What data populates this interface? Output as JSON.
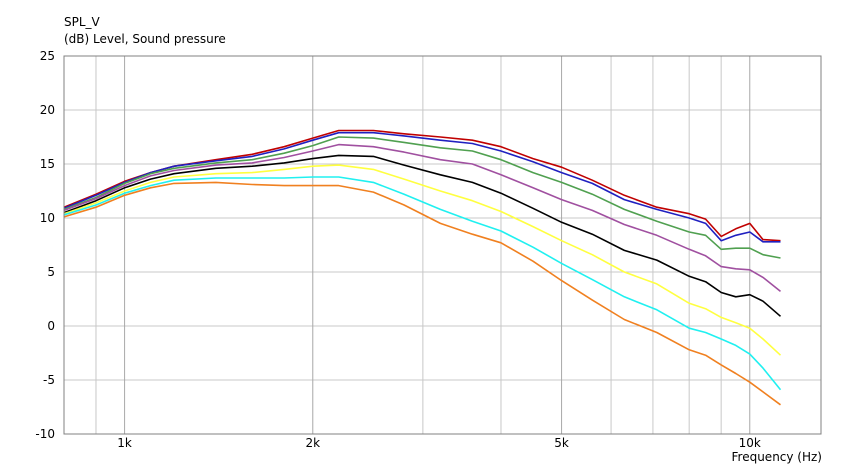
{
  "chart_data": {
    "type": "line",
    "title": "SPL_V",
    "ylabel": "(dB)  Level, Sound pressure",
    "xlabel": "Frequency  (Hz)",
    "x_scale": "log",
    "xlim": [
      800,
      13000
    ],
    "ylim": [
      -10,
      25
    ],
    "grid": true,
    "y_ticks": [
      -10,
      -5,
      0,
      5,
      10,
      15,
      20,
      25
    ],
    "x_ticks": [
      {
        "value": 1000,
        "label": "1k"
      },
      {
        "value": 2000,
        "label": "2k"
      },
      {
        "value": 5000,
        "label": "5k"
      },
      {
        "value": 10000,
        "label": "10k"
      }
    ],
    "x_minor_grid": [
      900,
      3000,
      4000,
      6000,
      7000,
      8000,
      9000
    ],
    "x": [
      800,
      900,
      1000,
      1100,
      1200,
      1400,
      1600,
      1800,
      2000,
      2200,
      2500,
      2800,
      3200,
      3600,
      4000,
      4500,
      5000,
      5600,
      6300,
      7100,
      8000,
      8500,
      9000,
      9500,
      10000,
      10500,
      11200
    ],
    "series": [
      {
        "color": "#c00000",
        "values": [
          11.0,
          12.2,
          13.4,
          14.2,
          14.8,
          15.4,
          15.9,
          16.6,
          17.4,
          18.1,
          18.1,
          17.8,
          17.5,
          17.2,
          16.6,
          15.5,
          14.7,
          13.5,
          12.1,
          11.0,
          10.4,
          9.9,
          8.3,
          9.0,
          9.5,
          8.0,
          7.9
        ]
      },
      {
        "color": "#2020c0",
        "values": [
          10.9,
          12.1,
          13.3,
          14.2,
          14.8,
          15.3,
          15.7,
          16.4,
          17.2,
          17.9,
          17.9,
          17.6,
          17.2,
          16.9,
          16.2,
          15.2,
          14.2,
          13.2,
          11.7,
          10.8,
          10.0,
          9.5,
          7.9,
          8.4,
          8.7,
          7.8,
          7.8
        ]
      },
      {
        "color": "#50a050",
        "values": [
          10.8,
          11.9,
          13.2,
          14.1,
          14.6,
          15.1,
          15.4,
          16.0,
          16.7,
          17.5,
          17.4,
          17.0,
          16.5,
          16.2,
          15.4,
          14.2,
          13.3,
          12.2,
          10.8,
          9.7,
          8.7,
          8.4,
          7.1,
          7.2,
          7.2,
          6.6,
          6.3
        ]
      },
      {
        "color": "#a050a0",
        "values": [
          10.7,
          11.8,
          13.0,
          13.9,
          14.4,
          14.9,
          15.1,
          15.6,
          16.2,
          16.8,
          16.6,
          16.1,
          15.4,
          15.0,
          14.0,
          12.8,
          11.7,
          10.7,
          9.4,
          8.4,
          7.1,
          6.5,
          5.5,
          5.3,
          5.2,
          4.5,
          3.2
        ]
      },
      {
        "color": "#000000",
        "values": [
          10.5,
          11.6,
          12.8,
          13.6,
          14.1,
          14.6,
          14.8,
          15.1,
          15.5,
          15.8,
          15.7,
          14.9,
          14.0,
          13.3,
          12.3,
          10.9,
          9.6,
          8.5,
          7.0,
          6.1,
          4.6,
          4.1,
          3.1,
          2.7,
          2.9,
          2.3,
          0.9
        ]
      },
      {
        "color": "#ffff40",
        "values": [
          10.4,
          11.4,
          12.5,
          13.3,
          13.8,
          14.1,
          14.2,
          14.5,
          14.8,
          14.9,
          14.5,
          13.6,
          12.5,
          11.6,
          10.6,
          9.2,
          7.9,
          6.6,
          5.0,
          3.9,
          2.1,
          1.6,
          0.8,
          0.3,
          -0.2,
          -1.2,
          -2.7
        ]
      },
      {
        "color": "#20f0f0",
        "values": [
          10.3,
          11.2,
          12.3,
          13.0,
          13.5,
          13.7,
          13.7,
          13.7,
          13.8,
          13.8,
          13.3,
          12.2,
          10.8,
          9.7,
          8.8,
          7.3,
          5.8,
          4.3,
          2.7,
          1.5,
          -0.2,
          -0.6,
          -1.2,
          -1.8,
          -2.6,
          -3.9,
          -5.9
        ]
      },
      {
        "color": "#f08020",
        "values": [
          10.1,
          11.0,
          12.1,
          12.8,
          13.2,
          13.3,
          13.1,
          13.0,
          13.0,
          13.0,
          12.4,
          11.2,
          9.5,
          8.5,
          7.7,
          6.0,
          4.2,
          2.4,
          0.6,
          -0.6,
          -2.2,
          -2.7,
          -3.6,
          -4.4,
          -5.2,
          -6.1,
          -7.3
        ]
      }
    ]
  }
}
